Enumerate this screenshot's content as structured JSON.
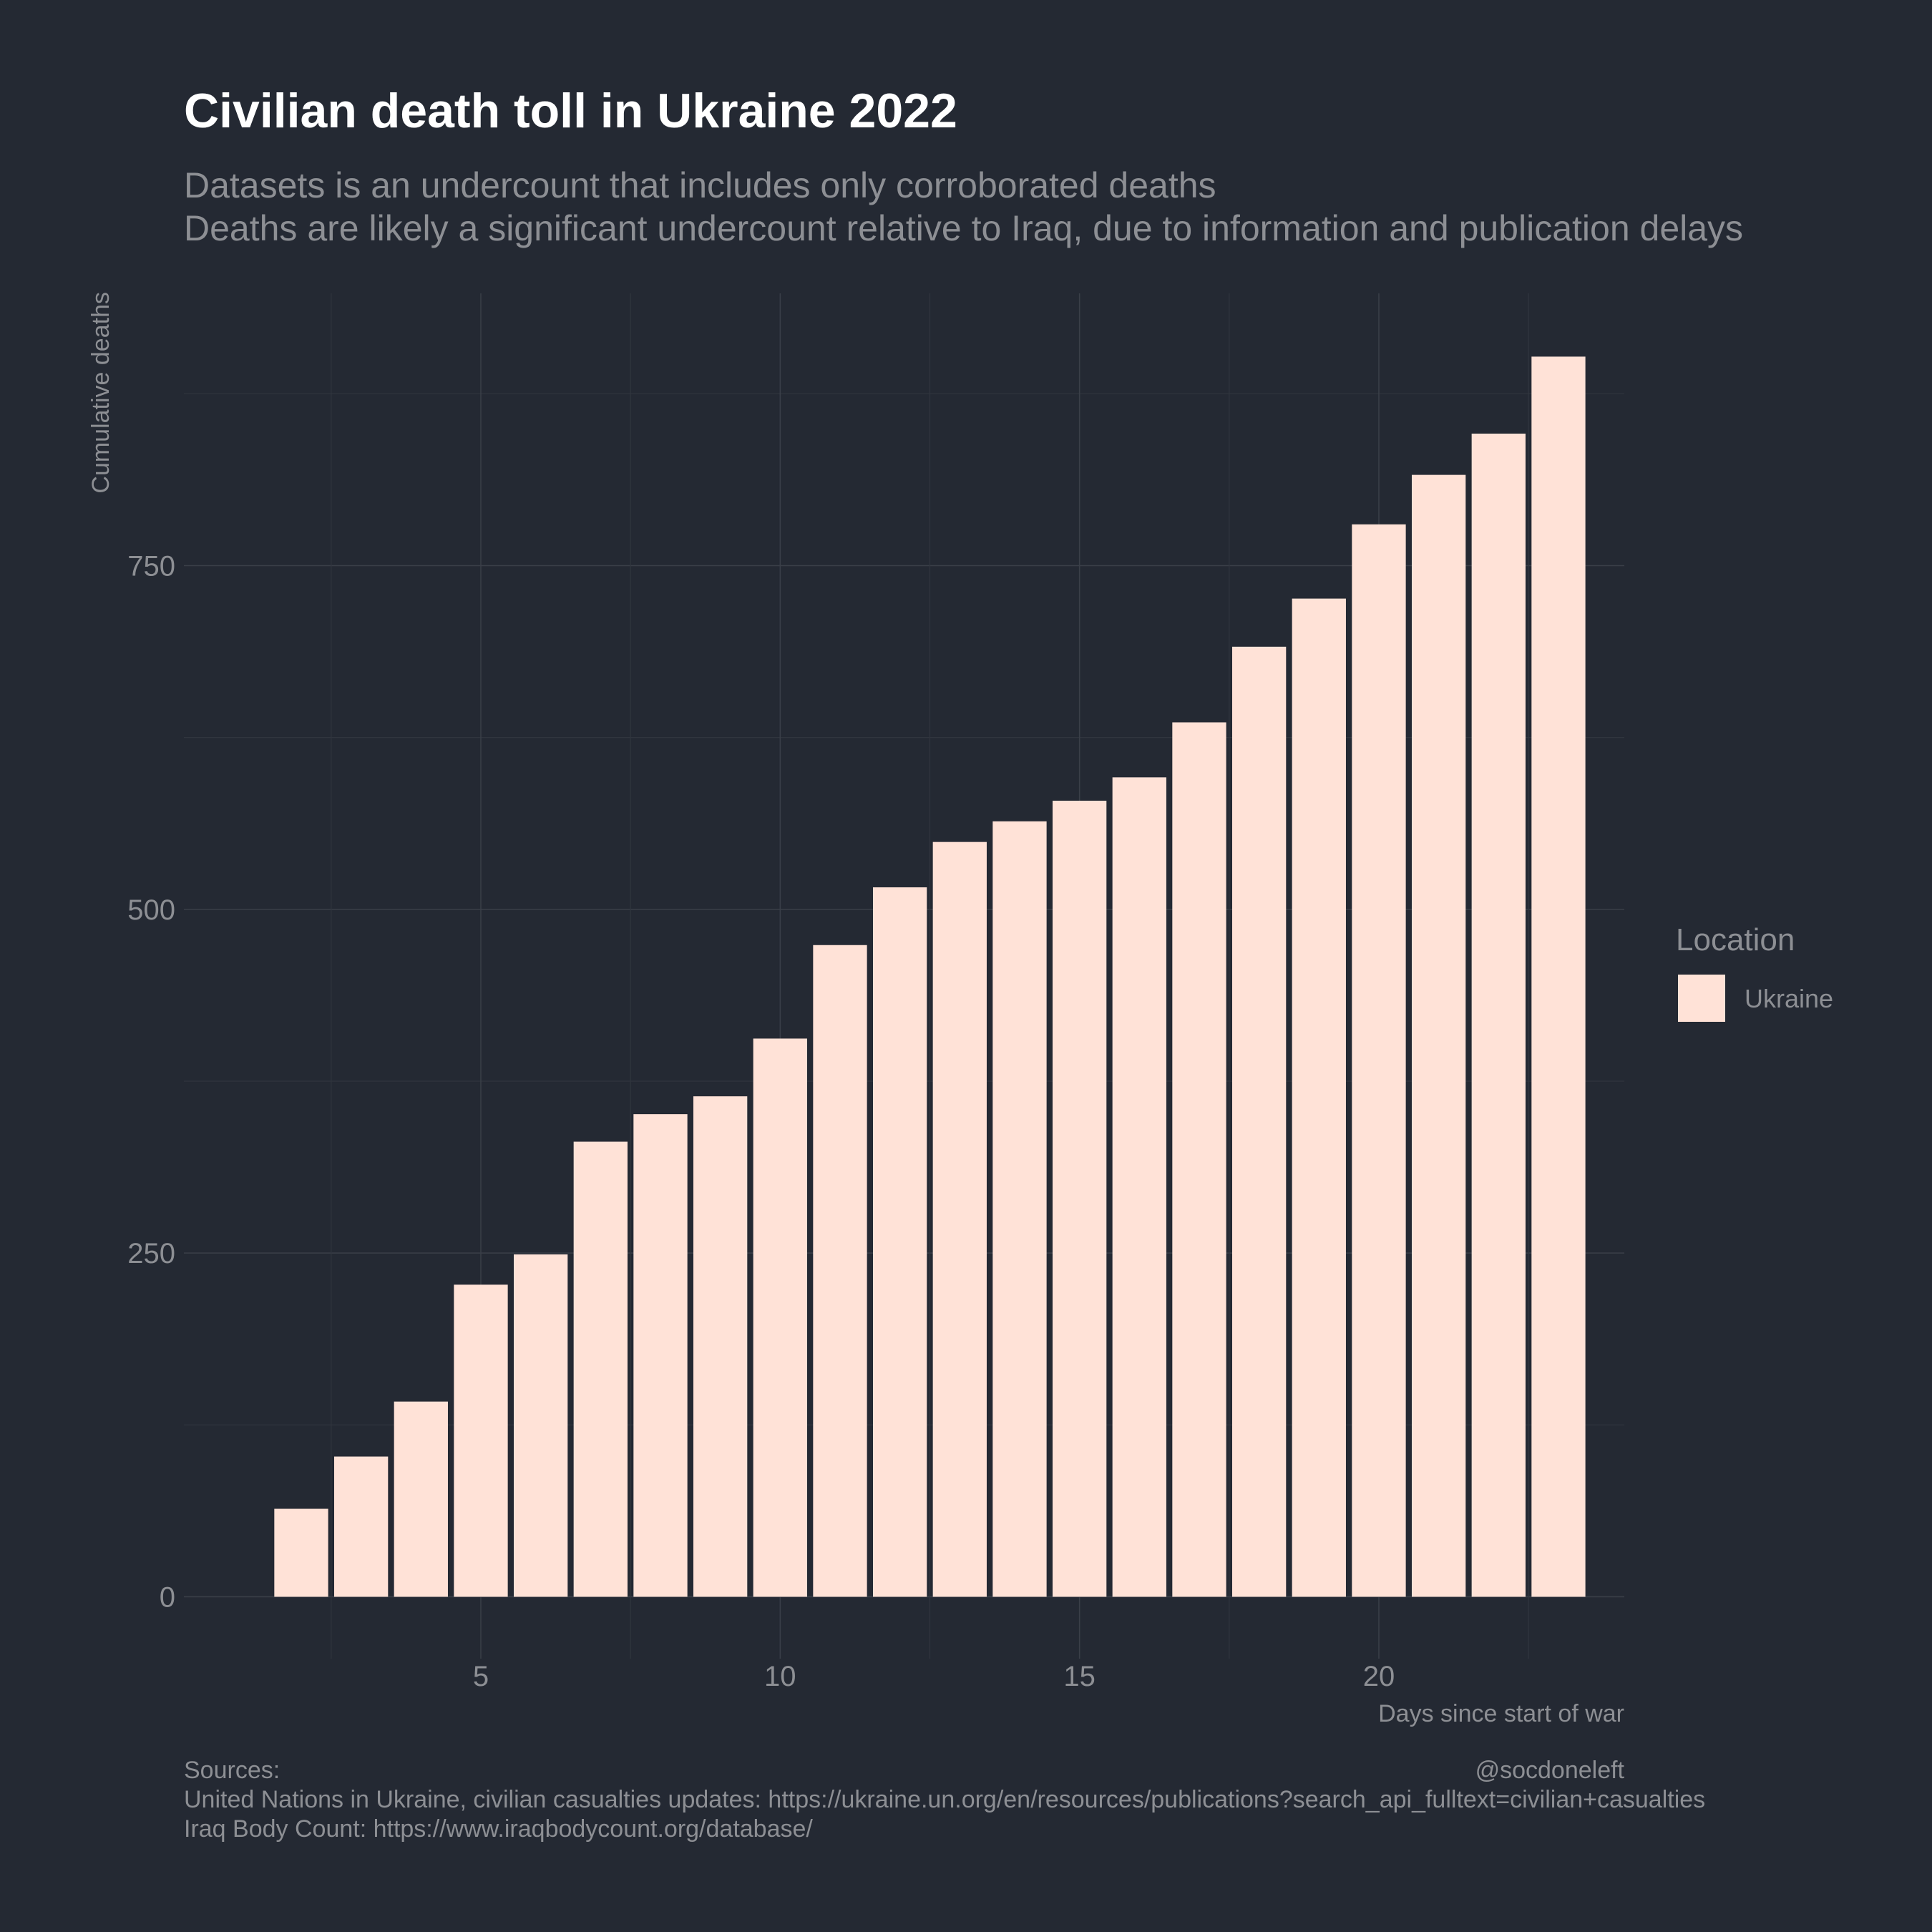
{
  "chart_data": {
    "type": "bar",
    "title": "Civilian death toll in Ukraine 2022",
    "subtitle": [
      "Datasets is an undercount that includes only corroborated deaths",
      "Deaths are likely a significant undercount relative to Iraq, due to information and publication delays"
    ],
    "xlabel": "Days since start of war",
    "ylabel": "Cumulative deaths",
    "x": [
      2,
      3,
      4,
      5,
      6,
      7,
      8,
      9,
      10,
      11,
      12,
      13,
      14,
      15,
      16,
      17,
      18,
      19,
      20,
      21,
      22,
      23
    ],
    "series": [
      {
        "name": "Ukraine",
        "color": "#ffe2d7",
        "values": [
          64,
          102,
          142,
          227,
          249,
          331,
          351,
          364,
          406,
          474,
          516,
          549,
          564,
          579,
          596,
          636,
          691,
          726,
          780,
          816,
          846,
          902
        ]
      }
    ],
    "xlim": [
      0.04,
      24.1
    ],
    "ylim": [
      -45,
      948
    ],
    "xticks": [
      5,
      10,
      15,
      20
    ],
    "yticks": [
      0,
      250,
      500,
      750
    ],
    "grid": true,
    "legend": {
      "title": "Location",
      "placement": "right"
    },
    "caption": {
      "left": [
        "Sources:",
        "United Nations in Ukraine, civilian casualties updates: https://ukraine.un.org/en/resources/publications?search_api_fulltext=civilian+casualties",
        "Iraq Body Count: https://www.iraqbodycount.org/database/"
      ],
      "right": "@socdoneleft"
    },
    "colors": {
      "background": "#242933"
    }
  }
}
